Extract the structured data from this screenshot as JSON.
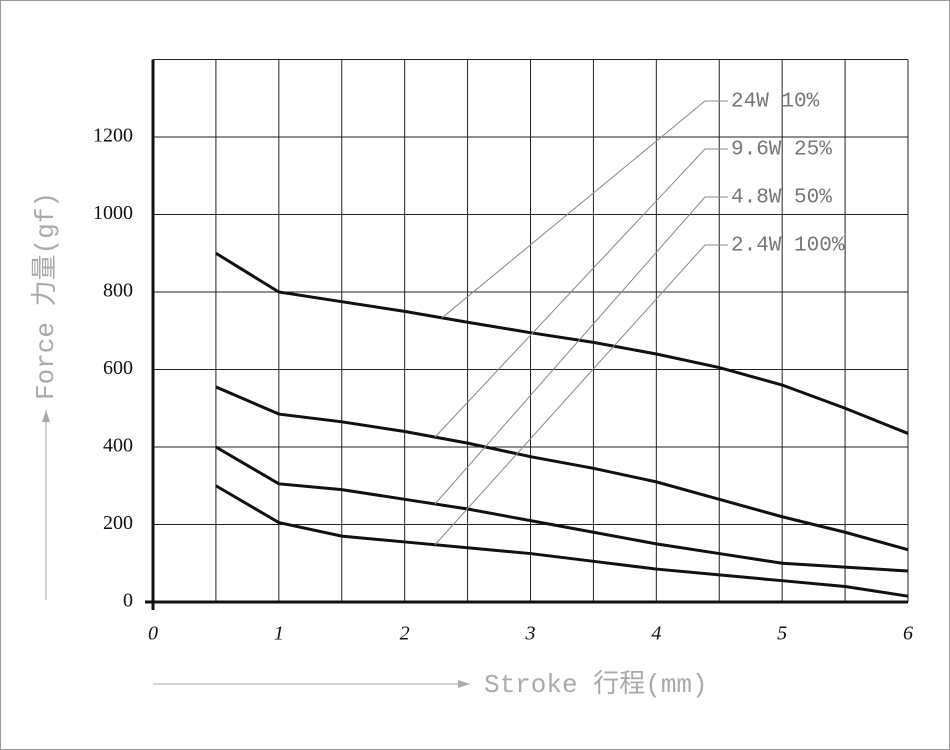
{
  "chart_data": {
    "type": "line",
    "x_label": "Stroke 行程(mm)",
    "y_label": "Force 力量(gf)",
    "xlim": [
      0,
      6
    ],
    "ylim": [
      0,
      1400
    ],
    "xticks": [
      0,
      1,
      2,
      3,
      4,
      5,
      6
    ],
    "yticks": [
      0,
      200,
      400,
      600,
      800,
      1000,
      1200
    ],
    "grid": true,
    "x": [
      0.5,
      1,
      1.5,
      2,
      2.5,
      3,
      3.5,
      4,
      4.5,
      5,
      5.5,
      6
    ],
    "series": [
      {
        "name": "24W 10%",
        "color": "#111111",
        "values": [
          900,
          800,
          775,
          750,
          722,
          695,
          670,
          640,
          605,
          560,
          500,
          435
        ]
      },
      {
        "name": "9.6W 25%",
        "color": "#111111",
        "values": [
          555,
          485,
          465,
          440,
          410,
          375,
          345,
          310,
          265,
          220,
          180,
          135
        ]
      },
      {
        "name": "4.8W 50%",
        "color": "#111111",
        "values": [
          400,
          305,
          290,
          265,
          240,
          210,
          180,
          150,
          125,
          100,
          90,
          80
        ]
      },
      {
        "name": "2.4W 100%",
        "color": "#111111",
        "values": [
          300,
          205,
          170,
          155,
          140,
          125,
          105,
          85,
          70,
          55,
          40,
          15
        ]
      }
    ]
  }
}
